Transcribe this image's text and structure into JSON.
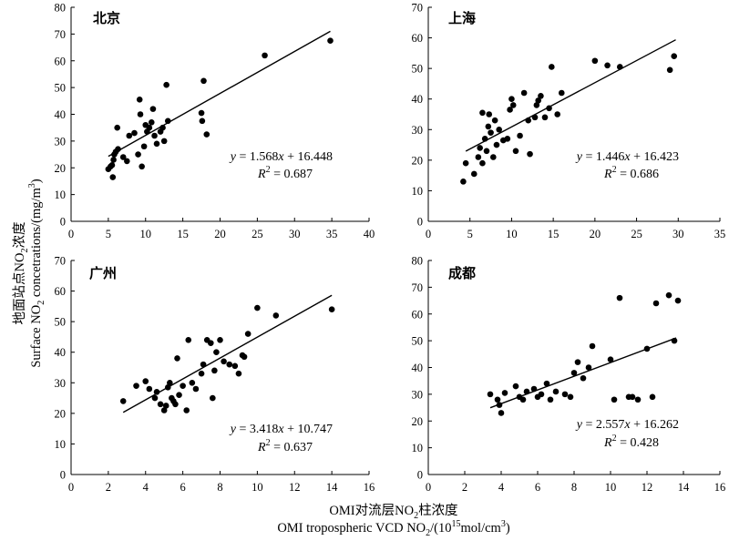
{
  "y_axis_label": {
    "cn": "地面站点NO",
    "cn_sub": "2",
    "cn_tail": "浓度",
    "en": "Surface NO",
    "en_sub": "2",
    "en_tail": " concetrations/(mg/m",
    "en_sup": "3",
    "en_close": ")"
  },
  "x_axis_label": {
    "cn": "OMI对流层NO",
    "cn_sub": "2",
    "cn_tail": "柱浓度",
    "en": "OMI tropospheric VCD NO",
    "en_sub": "2",
    "en_tail": "/(10",
    "en_sup": "15",
    "en_close": "mol/cm",
    "en_sup2": "3",
    "en_end": ")"
  },
  "chart_data": [
    {
      "type": "scatter",
      "title": "北京",
      "xlim": [
        0,
        40
      ],
      "xticks": [
        0,
        5,
        10,
        15,
        20,
        25,
        30,
        35,
        40
      ],
      "ylim": [
        0,
        80
      ],
      "yticks": [
        0,
        10,
        20,
        30,
        40,
        50,
        60,
        70,
        80
      ],
      "regression": {
        "slope": 1.568,
        "intercept": 16.448,
        "x_range": [
          5.0,
          34.8
        ]
      },
      "equation": {
        "y": "y",
        "eq": " = 1.568",
        "x": "x",
        "tail": " + 16.448",
        "r": "R",
        "sup": "2",
        "rtail": " = 0.687"
      },
      "points": [
        [
          5.0,
          19.5
        ],
        [
          5.3,
          20.5
        ],
        [
          5.5,
          21
        ],
        [
          5.6,
          16.5
        ],
        [
          5.7,
          23
        ],
        [
          5.8,
          25
        ],
        [
          6.0,
          26
        ],
        [
          6.2,
          35
        ],
        [
          6.3,
          27
        ],
        [
          7.0,
          24
        ],
        [
          7.5,
          22.5
        ],
        [
          7.8,
          32
        ],
        [
          8.5,
          33
        ],
        [
          9.0,
          25
        ],
        [
          9.2,
          45.5
        ],
        [
          9.3,
          40
        ],
        [
          9.5,
          20.5
        ],
        [
          9.8,
          28
        ],
        [
          10.0,
          36
        ],
        [
          10.2,
          33.5
        ],
        [
          10.5,
          35
        ],
        [
          10.8,
          37
        ],
        [
          11.0,
          42
        ],
        [
          11.2,
          32
        ],
        [
          11.5,
          29
        ],
        [
          12.0,
          33.5
        ],
        [
          12.3,
          35
        ],
        [
          12.5,
          30
        ],
        [
          12.8,
          51
        ],
        [
          13.0,
          37.5
        ],
        [
          17.5,
          40.5
        ],
        [
          17.6,
          37.5
        ],
        [
          17.8,
          52.5
        ],
        [
          18.2,
          32.5
        ],
        [
          26.0,
          62
        ],
        [
          34.8,
          67.5
        ]
      ]
    },
    {
      "type": "scatter",
      "title": "上海",
      "xlim": [
        0,
        35
      ],
      "xticks": [
        0,
        5,
        10,
        15,
        20,
        25,
        30,
        35
      ],
      "ylim": [
        0,
        70
      ],
      "yticks": [
        0,
        10,
        20,
        30,
        40,
        50,
        60,
        70
      ],
      "regression": {
        "slope": 1.446,
        "intercept": 16.423,
        "x_range": [
          4.5,
          29.7
        ]
      },
      "equation": {
        "y": "y",
        "eq": " = 1.446",
        "x": "x",
        "tail": " + 16.423",
        "r": "R",
        "sup": "2",
        "rtail": " = 0.686"
      },
      "points": [
        [
          4.2,
          13
        ],
        [
          4.5,
          19
        ],
        [
          5.5,
          15.5
        ],
        [
          6.0,
          21
        ],
        [
          6.2,
          24
        ],
        [
          6.5,
          19
        ],
        [
          6.5,
          35.5
        ],
        [
          6.8,
          27
        ],
        [
          7.0,
          23
        ],
        [
          7.2,
          31
        ],
        [
          7.3,
          35
        ],
        [
          7.5,
          29
        ],
        [
          7.8,
          21
        ],
        [
          8.0,
          33
        ],
        [
          8.2,
          25
        ],
        [
          8.5,
          30
        ],
        [
          9.0,
          26.5
        ],
        [
          9.5,
          27
        ],
        [
          9.8,
          36.5
        ],
        [
          10.0,
          40
        ],
        [
          10.2,
          38
        ],
        [
          10.5,
          23
        ],
        [
          11.0,
          28
        ],
        [
          11.5,
          42
        ],
        [
          12.0,
          33
        ],
        [
          12.2,
          22
        ],
        [
          12.8,
          34
        ],
        [
          13.0,
          38
        ],
        [
          13.2,
          39.5
        ],
        [
          13.5,
          41
        ],
        [
          14.0,
          34
        ],
        [
          14.5,
          37
        ],
        [
          14.8,
          50.5
        ],
        [
          15.5,
          35
        ],
        [
          16.0,
          42
        ],
        [
          20.0,
          52.5
        ],
        [
          21.5,
          51
        ],
        [
          23.0,
          50.5
        ],
        [
          29.0,
          49.5
        ],
        [
          29.5,
          54
        ]
      ]
    },
    {
      "type": "scatter",
      "title": "广州",
      "xlim": [
        0,
        16
      ],
      "xticks": [
        0,
        2,
        4,
        6,
        8,
        10,
        12,
        14,
        16
      ],
      "ylim": [
        0,
        70
      ],
      "yticks": [
        0,
        10,
        20,
        30,
        40,
        50,
        60,
        70
      ],
      "regression": {
        "slope": 3.418,
        "intercept": 10.747,
        "x_range": [
          2.8,
          14.0
        ]
      },
      "equation": {
        "y": "y",
        "eq": " = 3.418",
        "x": "x",
        "tail": " + 10.747",
        "r": "R",
        "sup": "2",
        "rtail": " = 0.637"
      },
      "points": [
        [
          2.8,
          24
        ],
        [
          3.5,
          29
        ],
        [
          4.0,
          30.5
        ],
        [
          4.2,
          28
        ],
        [
          4.5,
          25
        ],
        [
          4.6,
          27
        ],
        [
          4.8,
          23
        ],
        [
          5.0,
          21
        ],
        [
          5.1,
          22.5
        ],
        [
          5.2,
          28.5
        ],
        [
          5.3,
          30
        ],
        [
          5.4,
          25
        ],
        [
          5.5,
          24
        ],
        [
          5.6,
          23
        ],
        [
          5.7,
          38
        ],
        [
          5.8,
          26
        ],
        [
          6.0,
          29
        ],
        [
          6.2,
          21
        ],
        [
          6.3,
          44
        ],
        [
          6.5,
          30
        ],
        [
          6.7,
          28
        ],
        [
          7.0,
          33
        ],
        [
          7.1,
          36
        ],
        [
          7.3,
          44
        ],
        [
          7.5,
          43
        ],
        [
          7.6,
          25
        ],
        [
          7.7,
          34
        ],
        [
          7.8,
          40
        ],
        [
          8.0,
          44
        ],
        [
          8.2,
          37
        ],
        [
          8.5,
          36
        ],
        [
          8.8,
          35.5
        ],
        [
          9.0,
          33
        ],
        [
          9.2,
          39
        ],
        [
          9.3,
          38.5
        ],
        [
          9.5,
          46
        ],
        [
          10.0,
          54.5
        ],
        [
          11.0,
          52
        ],
        [
          14.0,
          54
        ]
      ]
    },
    {
      "type": "scatter",
      "title": "成都",
      "xlim": [
        0,
        16
      ],
      "xticks": [
        0,
        2,
        4,
        6,
        8,
        10,
        12,
        14,
        16
      ],
      "ylim": [
        0,
        80
      ],
      "yticks": [
        0,
        10,
        20,
        30,
        40,
        50,
        60,
        70,
        80
      ],
      "regression": {
        "slope": 2.557,
        "intercept": 16.262,
        "x_range": [
          3.4,
          13.6
        ]
      },
      "equation": {
        "y": "y",
        "eq": " = 2.557",
        "x": "x",
        "tail": " + 16.262",
        "r": "R",
        "sup": "2",
        "rtail": " = 0.428"
      },
      "points": [
        [
          3.4,
          30
        ],
        [
          3.8,
          28
        ],
        [
          3.9,
          26
        ],
        [
          4.0,
          23
        ],
        [
          4.2,
          30.5
        ],
        [
          4.8,
          33
        ],
        [
          5.0,
          29
        ],
        [
          5.2,
          28
        ],
        [
          5.4,
          31
        ],
        [
          5.8,
          32
        ],
        [
          6.0,
          29
        ],
        [
          6.2,
          30
        ],
        [
          6.5,
          34
        ],
        [
          6.7,
          28
        ],
        [
          7.0,
          31
        ],
        [
          7.5,
          30
        ],
        [
          7.8,
          29
        ],
        [
          8.0,
          38
        ],
        [
          8.2,
          42
        ],
        [
          8.5,
          36
        ],
        [
          8.8,
          40
        ],
        [
          9.0,
          48
        ],
        [
          10.0,
          43
        ],
        [
          10.2,
          28
        ],
        [
          10.5,
          66
        ],
        [
          11.0,
          29
        ],
        [
          11.2,
          29
        ],
        [
          11.5,
          28
        ],
        [
          12.0,
          47
        ],
        [
          12.3,
          29
        ],
        [
          12.5,
          64
        ],
        [
          13.2,
          67
        ],
        [
          13.5,
          50
        ],
        [
          13.7,
          65
        ]
      ]
    }
  ]
}
